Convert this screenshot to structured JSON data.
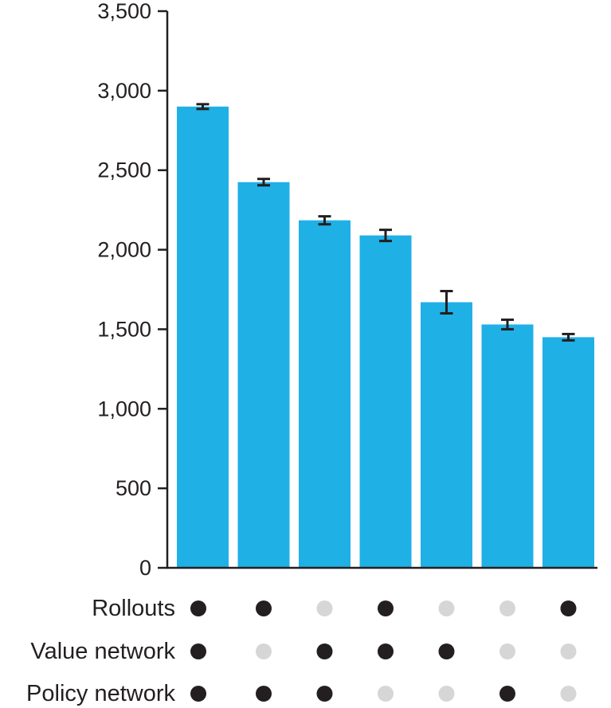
{
  "chart_data": {
    "type": "bar",
    "title": "",
    "xlabel": "",
    "ylabel": "",
    "ylim": [
      0,
      3500
    ],
    "yticks": [
      0,
      500,
      1000,
      1500,
      2000,
      2500,
      3000,
      3500
    ],
    "ytick_labels": [
      "0",
      "500",
      "1,000",
      "1,500",
      "2,000",
      "2,500",
      "3,000",
      "3,500"
    ],
    "grid": false,
    "legend": "none",
    "colors": {
      "bar": "#1fb0e6",
      "error_bar": "#231f20",
      "dot_on": "#231f20",
      "dot_off": "#d6d6d6",
      "axis": "#231f20"
    },
    "values": [
      2900,
      2425,
      2185,
      2090,
      1670,
      1530,
      1450
    ],
    "errors": [
      15,
      20,
      25,
      35,
      70,
      30,
      20
    ],
    "components": [
      {
        "name": "Rollouts",
        "used": [
          true,
          true,
          false,
          true,
          false,
          false,
          true
        ]
      },
      {
        "name": "Value network",
        "used": [
          true,
          false,
          true,
          true,
          true,
          false,
          false
        ]
      },
      {
        "name": "Policy network",
        "used": [
          true,
          true,
          true,
          false,
          false,
          true,
          false
        ]
      }
    ]
  }
}
